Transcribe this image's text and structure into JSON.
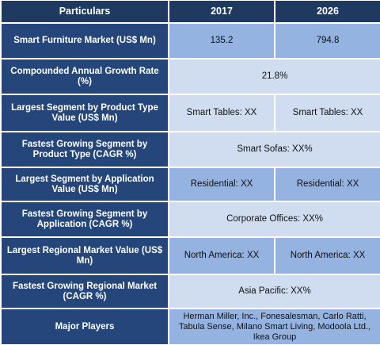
{
  "header": {
    "col1": "Particulars",
    "col2": "2017",
    "col3": "2026"
  },
  "rows": [
    {
      "label": "Smart Furniture Market (US$ Mn)",
      "values": [
        "135.2",
        "794.8"
      ]
    },
    {
      "label": "Compounded Annual Growth Rate (%)",
      "values": [
        "21.8%"
      ]
    },
    {
      "label": "Largest Segment by Product Type Value (US$ Mn)",
      "values": [
        "Smart Tables: XX",
        "Smart Tables:  XX"
      ]
    },
    {
      "label": "Fastest Growing Segment by Product Type (CAGR %)",
      "values": [
        "Smart Sofas:  XX%"
      ]
    },
    {
      "label": "Largest Segment by Application Value (US$ Mn)",
      "values": [
        "Residential:  XX",
        "Residential:  XX"
      ]
    },
    {
      "label": "Fastest Growing Segment by Application (CAGR %)",
      "values": [
        "Corporate Offices: XX%"
      ]
    },
    {
      "label": "Largest Regional Market Value (US$ Mn)",
      "values": [
        "North America: XX",
        "North America: XX"
      ]
    },
    {
      "label": "Fastest Growing Regional Market (CAGR %)",
      "values": [
        "Asia Pacific: XX%"
      ]
    },
    {
      "label": "Major Players",
      "values": [
        "Herman Miller, Inc., Fonesalesman, Carlo Ratti, Tabula Sense, Milano Smart Living, Modoola Ltd., Ikea Group"
      ]
    }
  ],
  "colors": {
    "header": "#1f3a60",
    "label": "#24467a",
    "dark_cell": "#94b3e0",
    "light_cell": "#d0dcf0"
  }
}
